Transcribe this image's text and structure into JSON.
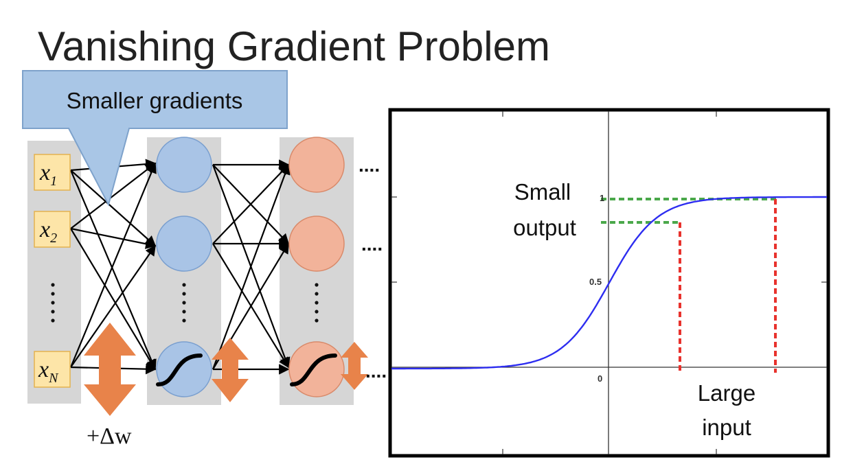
{
  "title": "Vanishing Gradient Problem",
  "callout": {
    "text": "Smaller gradients"
  },
  "inputs": [
    {
      "symbol": "x",
      "subscript": "1"
    },
    {
      "symbol": "x",
      "subscript": "2"
    },
    {
      "symbol": "x",
      "subscript": "N"
    }
  ],
  "vertical_dots": ":",
  "continuation_dots": "....",
  "weight_change_label": "+Δw",
  "colors": {
    "layer_bg": "#d6d6d6",
    "input_box": "#fde5a8",
    "input_border": "#e3b24f",
    "hidden1": "#a9c4e6",
    "hidden1_border": "#7a9fcf",
    "hidden2": "#f2b39a",
    "hidden2_border": "#d98a6a",
    "arrow": "#e8834a",
    "callout_fill": "#a9c6e6",
    "callout_border": "#7ea2cb",
    "curve": "#2d2df0",
    "green_dash": "#4aa84a",
    "red_dash": "#e8322d"
  },
  "graph": {
    "function": "sigmoid",
    "tick_labels": {
      "y_one": "1",
      "y_half": "0.5",
      "x_zero": "0"
    },
    "small_output_label": [
      "Small",
      "output"
    ],
    "large_input_label": [
      "Large",
      "input"
    ],
    "x_min": -10,
    "x_max": 10,
    "y_min": -0.5,
    "y_max": 1.5,
    "marked_inputs": [
      3,
      7.5
    ]
  }
}
